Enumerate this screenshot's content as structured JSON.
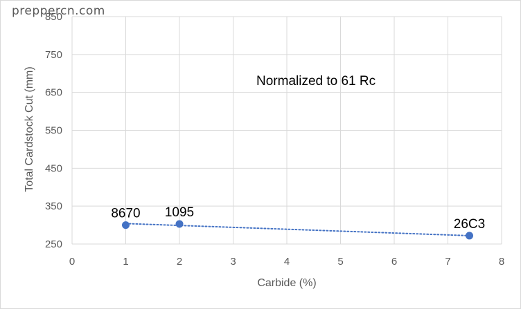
{
  "watermark": "preppercn.com",
  "chart_data": {
    "type": "scatter",
    "title": "",
    "xlabel": "Carbide (%)",
    "ylabel": "Total Cardstock Cut (mm)",
    "xlim": [
      0,
      8
    ],
    "ylim": [
      250,
      850
    ],
    "x_ticks": [
      0,
      1,
      2,
      3,
      4,
      5,
      6,
      7,
      8
    ],
    "y_ticks": [
      250,
      350,
      450,
      550,
      650,
      750,
      850
    ],
    "grid": true,
    "legend": "none",
    "annotation": "Normalized to 61 Rc",
    "trendline": {
      "type": "linear",
      "style": "dotted",
      "color": "#4472c4",
      "from": [
        1,
        304
      ],
      "to": [
        7.4,
        272
      ]
    },
    "points": [
      {
        "label": "8670",
        "x": 1.0,
        "y": 300
      },
      {
        "label": "1095",
        "x": 2.0,
        "y": 303
      },
      {
        "label": "26C3",
        "x": 7.4,
        "y": 272
      }
    ],
    "colors": {
      "marker": "#4472c4",
      "grid": "#d9d9d9",
      "text": "#595959"
    }
  }
}
